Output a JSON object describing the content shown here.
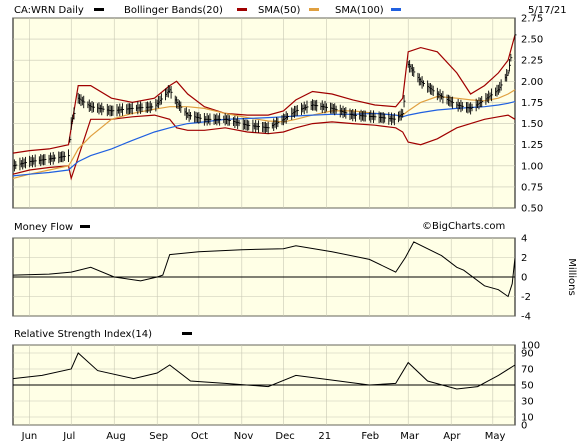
{
  "header": {
    "symbol_label": "CA:WRN Daily",
    "bollinger_label": "Bollinger Bands(20)",
    "sma50_label": "SMA(50)",
    "sma100_label": "SMA(100)",
    "date_label": "5/17/21"
  },
  "watermark": "©BigCharts.com",
  "colors": {
    "panel_bg": "#ffffe6",
    "grid": "#c8c8b4",
    "price": "#000000",
    "bollinger": "#a00000",
    "sma50": "#e0a040",
    "sma100": "#2060e0"
  },
  "chart_data": [
    {
      "type": "line",
      "panel": "price",
      "y_ticks": [
        "2.75",
        "2.50",
        "2.25",
        "2.00",
        "1.75",
        "1.50",
        "1.25",
        "1.00",
        "0.75",
        "0.50"
      ],
      "ylim": [
        0.5,
        2.75
      ],
      "grid": true,
      "x_ticks": [
        "Jun",
        "Jul",
        "Aug",
        "Sep",
        "Oct",
        "Nov",
        "Dec",
        "21",
        "Feb",
        "Mar",
        "Apr",
        "May"
      ],
      "x": [
        "2020-05-20",
        "2020-06-01",
        "2020-06-15",
        "2020-06-29",
        "2020-07-01",
        "2020-07-06",
        "2020-07-15",
        "2020-07-30",
        "2020-08-14",
        "2020-08-30",
        "2020-09-10",
        "2020-09-15",
        "2020-09-23",
        "2020-10-05",
        "2020-10-20",
        "2020-11-05",
        "2020-11-20",
        "2020-12-01",
        "2020-12-10",
        "2020-12-22",
        "2021-01-05",
        "2021-01-20",
        "2021-02-05",
        "2021-02-20",
        "2021-02-25",
        "2021-03-01",
        "2021-03-10",
        "2021-03-22",
        "2021-04-05",
        "2021-04-15",
        "2021-04-25",
        "2021-05-05",
        "2021-05-12",
        "2021-05-17"
      ],
      "series": [
        {
          "name": "",
          "role": "close",
          "values": [
            1.0,
            1.05,
            1.08,
            1.12,
            1.5,
            1.8,
            1.7,
            1.65,
            1.68,
            1.7,
            1.9,
            1.75,
            1.6,
            1.55,
            1.55,
            1.48,
            1.45,
            1.55,
            1.65,
            1.72,
            1.68,
            1.6,
            1.58,
            1.55,
            1.62,
            2.2,
            2.0,
            1.85,
            1.72,
            1.68,
            1.78,
            1.9,
            2.1,
            2.55
          ]
        },
        {
          "name": "Bollinger Bands(20)",
          "role": "upper",
          "values": [
            1.15,
            1.18,
            1.2,
            1.25,
            1.45,
            1.95,
            1.95,
            1.8,
            1.75,
            1.8,
            1.95,
            2.0,
            1.85,
            1.7,
            1.62,
            1.6,
            1.6,
            1.65,
            1.78,
            1.88,
            1.85,
            1.78,
            1.72,
            1.7,
            1.8,
            2.35,
            2.4,
            2.35,
            2.1,
            1.85,
            1.95,
            2.1,
            2.25,
            2.55
          ]
        },
        {
          "name": "Bollinger Bands(20)",
          "role": "lower",
          "values": [
            0.9,
            0.95,
            0.98,
            1.0,
            0.85,
            1.1,
            1.55,
            1.55,
            1.58,
            1.6,
            1.55,
            1.45,
            1.42,
            1.42,
            1.45,
            1.4,
            1.38,
            1.4,
            1.45,
            1.5,
            1.52,
            1.5,
            1.48,
            1.45,
            1.4,
            1.28,
            1.25,
            1.32,
            1.45,
            1.5,
            1.55,
            1.58,
            1.6,
            1.55
          ]
        },
        {
          "name": "SMA(50)",
          "values": [
            0.85,
            0.9,
            0.95,
            1.0,
            1.05,
            1.2,
            1.35,
            1.55,
            1.62,
            1.67,
            1.7,
            1.7,
            1.7,
            1.68,
            1.62,
            1.57,
            1.53,
            1.52,
            1.55,
            1.6,
            1.65,
            1.65,
            1.62,
            1.6,
            1.6,
            1.65,
            1.75,
            1.82,
            1.8,
            1.78,
            1.77,
            1.8,
            1.85,
            1.9
          ]
        },
        {
          "name": "SMA(100)",
          "values": [
            0.88,
            0.9,
            0.92,
            0.95,
            0.98,
            1.05,
            1.12,
            1.2,
            1.3,
            1.4,
            1.45,
            1.47,
            1.5,
            1.52,
            1.55,
            1.56,
            1.57,
            1.58,
            1.59,
            1.6,
            1.61,
            1.61,
            1.62,
            1.6,
            1.58,
            1.6,
            1.63,
            1.66,
            1.68,
            1.69,
            1.7,
            1.72,
            1.74,
            1.76
          ]
        }
      ]
    },
    {
      "type": "line",
      "panel": "money_flow",
      "title": "Money Flow",
      "ylabel": "Millions",
      "y_ticks": [
        "4",
        "2",
        "0",
        "-2",
        "-4"
      ],
      "ylim": [
        -4,
        4
      ],
      "x": [
        "2020-05-20",
        "2020-06-15",
        "2020-07-01",
        "2020-07-15",
        "2020-08-01",
        "2020-08-20",
        "2020-09-01",
        "2020-09-05",
        "2020-09-10",
        "2020-10-01",
        "2020-11-01",
        "2020-12-01",
        "2020-12-10",
        "2021-01-05",
        "2021-02-01",
        "2021-02-20",
        "2021-02-27",
        "2021-03-05",
        "2021-03-25",
        "2021-04-05",
        "2021-04-10",
        "2021-04-25",
        "2021-05-05",
        "2021-05-12",
        "2021-05-15",
        "2021-05-17"
      ],
      "series": [
        {
          "name": "Money Flow",
          "values": [
            0.2,
            0.3,
            0.5,
            1.0,
            0.0,
            -0.4,
            0.0,
            0.2,
            2.3,
            2.6,
            2.8,
            2.9,
            3.2,
            2.6,
            1.8,
            0.5,
            2.0,
            3.6,
            2.2,
            1.0,
            0.7,
            -0.9,
            -1.3,
            -2.0,
            -0.7,
            2.0
          ]
        }
      ]
    },
    {
      "type": "line",
      "panel": "rsi",
      "title": "Relative Strength Index(14)",
      "y_ticks": [
        "100",
        "90",
        "70",
        "50",
        "30",
        "10",
        "0"
      ],
      "ylim": [
        0,
        100
      ],
      "x": [
        "2020-05-20",
        "2020-06-10",
        "2020-07-01",
        "2020-07-06",
        "2020-07-20",
        "2020-08-15",
        "2020-09-01",
        "2020-09-10",
        "2020-09-25",
        "2020-10-20",
        "2020-11-20",
        "2020-12-10",
        "2021-01-10",
        "2021-02-01",
        "2021-02-20",
        "2021-03-01",
        "2021-03-15",
        "2021-04-05",
        "2021-04-20",
        "2021-05-05",
        "2021-05-17"
      ],
      "series": [
        {
          "name": "Relative Strength Index(14)",
          "values": [
            58,
            62,
            70,
            90,
            68,
            58,
            65,
            75,
            55,
            52,
            48,
            62,
            55,
            50,
            52,
            78,
            55,
            45,
            48,
            62,
            75
          ]
        }
      ]
    }
  ]
}
